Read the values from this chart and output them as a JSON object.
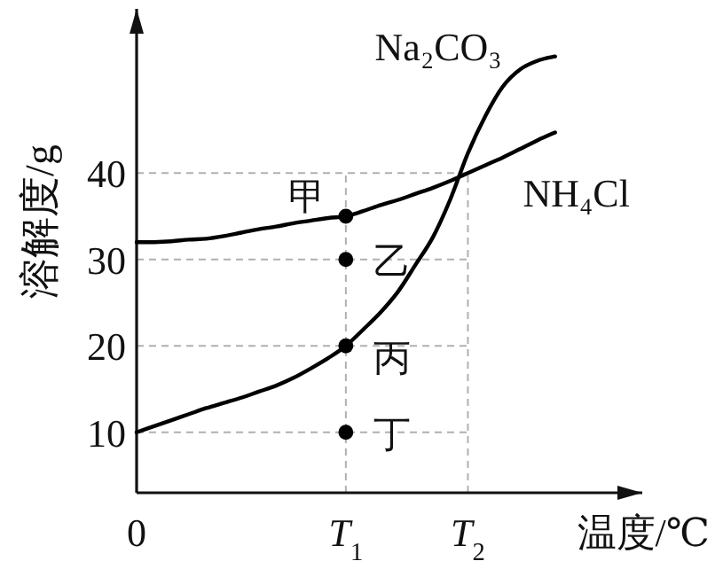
{
  "chart_data": {
    "type": "line",
    "xlabel": "温度/℃",
    "ylabel": "溶解度/g",
    "categories": [
      "0",
      null,
      null,
      null,
      null,
      null,
      null,
      null,
      null,
      null,
      null,
      null,
      "T$_{1}$",
      null,
      null,
      null,
      null,
      null,
      null,
      "T$_{2}$",
      null,
      null,
      null,
      null,
      null,
      null,
      null,
      null,
      null,
      null
    ],
    "series": [
      {
        "name": "Na₂CO₃",
        "color": "#000000",
        "values": [
          10,
          10.7,
          11.4,
          12.1,
          12.8,
          13.4,
          14.0,
          14.7,
          15.4,
          16.3,
          17.4,
          18.6,
          20,
          21.9,
          23.9,
          26.3,
          29.4,
          32.6,
          37,
          42.3,
          46.6,
          50,
          52,
          53,
          53.5,
          null,
          null,
          null,
          null,
          null
        ]
      },
      {
        "name": "NH₄Cl",
        "color": "#000000",
        "values": [
          32,
          32.0,
          32.1,
          32.3,
          32.4,
          32.7,
          33.1,
          33.5,
          33.8,
          34.2,
          34.5,
          34.8,
          35,
          35.6,
          36.3,
          36.9,
          37.6,
          38.3,
          39.1,
          40,
          40.9,
          41.8,
          42.8,
          43.8,
          44.7,
          null,
          null,
          null,
          null,
          null
        ]
      },
      {
        "type": "scatter",
        "color": "#000000",
        "x": [
          "T$_{1}$",
          "T$_{1}$",
          "T$_{1}$",
          "T$_{1}$"
        ],
        "values": [
          35,
          30,
          20,
          10
        ]
      }
    ],
    "ylim": [
      3,
      59
    ],
    "yticks": [
      10,
      20,
      30,
      40
    ],
    "ref_lines": [
      {
        "axis": "y",
        "value": 10,
        "color": "#b0b0b0",
        "line_style": "dashed"
      },
      {
        "axis": "y",
        "value": 20,
        "color": "#b0b0b0",
        "line_style": "dashed"
      },
      {
        "axis": "y",
        "value": 30,
        "color": "#b0b0b0",
        "line_style": "dashed"
      },
      {
        "axis": "y",
        "value": 40,
        "color": "#b0b0b0",
        "line_style": "dashed"
      },
      {
        "axis": "x",
        "value": "T$_{1}$",
        "color": "#b0b0b0",
        "line_style": "dashed"
      },
      {
        "axis": "x",
        "value": "T$_{2}$",
        "color": "#b0b0b0",
        "line_style": "dashed"
      }
    ],
    "annotations": [
      {
        "text": "甲",
        "x": "T$_{1}$",
        "y": 35
      },
      {
        "text": "乙",
        "x": "T$_{1}$",
        "y": 30
      },
      {
        "text": "丙",
        "x": "T$_{1}$",
        "y": 20
      },
      {
        "text": "丁",
        "x": "T$_{1}$",
        "y": 10
      }
    ]
  }
}
